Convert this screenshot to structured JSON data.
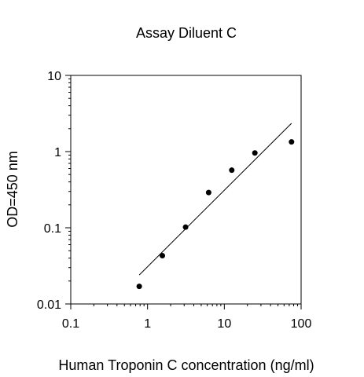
{
  "chart_data": {
    "type": "scatter",
    "title": "Assay Diluent C",
    "xlabel": "Human Troponin C concentration (ng/ml)",
    "ylabel": "OD=450 nm",
    "x_scale": "log",
    "y_scale": "log",
    "xlim": [
      0.1,
      100
    ],
    "ylim": [
      0.01,
      10
    ],
    "x_ticks": [
      0.1,
      1,
      10,
      100
    ],
    "x_tick_labels": [
      "0.1",
      "1",
      "10",
      "100"
    ],
    "y_ticks": [
      0.01,
      0.1,
      1,
      10
    ],
    "y_tick_labels": [
      "0.01",
      "0.1",
      "1",
      "10"
    ],
    "grid": false,
    "legend": "none",
    "series": [
      {
        "points": [
          {
            "x": 0.78,
            "y": 0.017
          },
          {
            "x": 1.56,
            "y": 0.043
          },
          {
            "x": 3.13,
            "y": 0.102
          },
          {
            "x": 6.25,
            "y": 0.29
          },
          {
            "x": 12.5,
            "y": 0.57
          },
          {
            "x": 25,
            "y": 0.96
          },
          {
            "x": 75,
            "y": 1.34
          }
        ]
      }
    ],
    "fit_line": {
      "x": [
        0.78,
        75
      ],
      "y": [
        0.024,
        2.35
      ]
    },
    "colors": {
      "marker": "#000000",
      "line": "#000000",
      "axis": "#000000"
    }
  }
}
